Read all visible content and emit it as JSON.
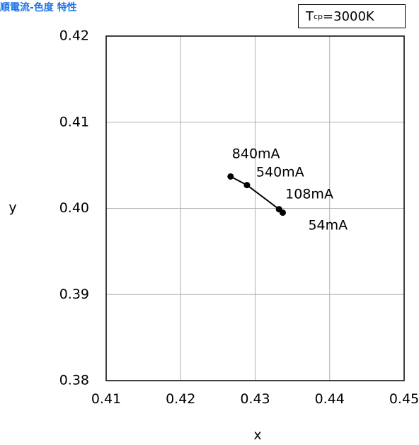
{
  "title": "順電流-色度 特性",
  "condition": {
    "symbol": "T",
    "subscript": "cp",
    "value": " =3000K"
  },
  "chart_data": {
    "type": "line",
    "xlabel": "x",
    "ylabel": "y",
    "xlim": [
      0.41,
      0.45
    ],
    "ylim": [
      0.38,
      0.42
    ],
    "xticks": [
      0.41,
      0.42,
      0.43,
      0.44,
      0.45
    ],
    "yticks": [
      0.38,
      0.39,
      0.4,
      0.41,
      0.42
    ],
    "xtick_labels": [
      "0.41",
      "0.42",
      "0.43",
      "0.44",
      "0.45"
    ],
    "ytick_labels": [
      "0.38",
      "0.39",
      "0.40",
      "0.41",
      "0.42"
    ],
    "grid": true,
    "series": [
      {
        "points": [
          {
            "x": 0.4267,
            "y": 0.4037,
            "label": "840mA"
          },
          {
            "x": 0.4289,
            "y": 0.4027,
            "label": "540mA"
          },
          {
            "x": 0.4332,
            "y": 0.3999,
            "label": "108mA"
          },
          {
            "x": 0.4337,
            "y": 0.3995,
            "label": "54mA"
          }
        ]
      }
    ]
  }
}
